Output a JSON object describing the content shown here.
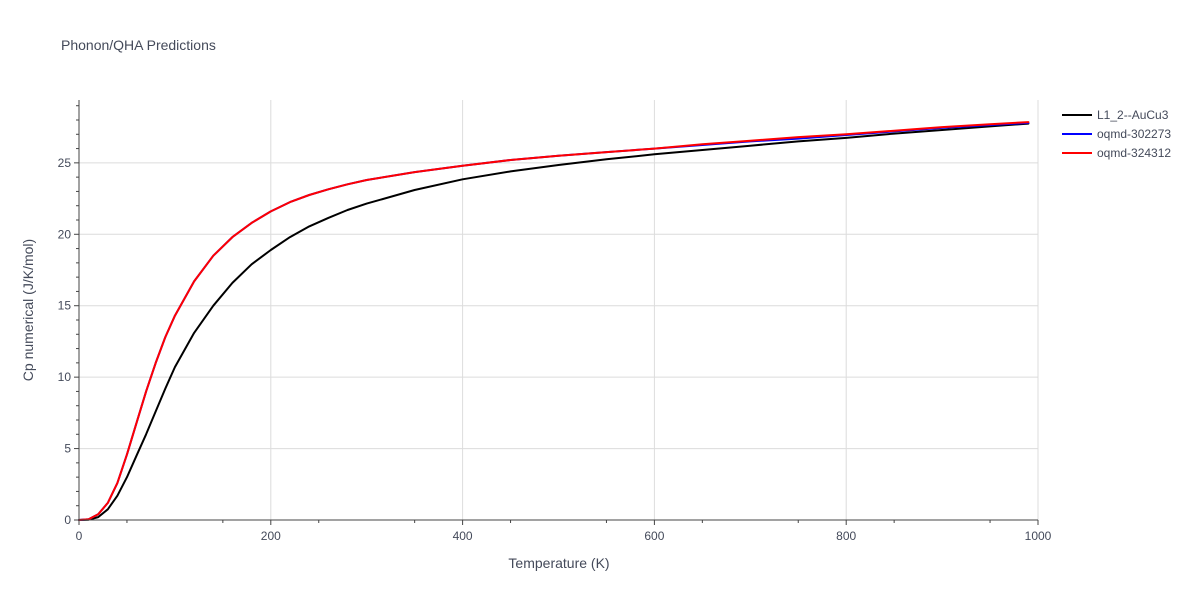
{
  "chart_data": {
    "type": "line",
    "title": "Phonon/QHA Predictions",
    "xlabel": "Temperature (K)",
    "ylabel": "Cp numerical (J/K/mol)",
    "xlim": [
      0,
      1000
    ],
    "ylim": [
      0,
      29.4
    ],
    "xticks": [
      0,
      200,
      400,
      600,
      800,
      1000
    ],
    "xtick_labels": [
      "0",
      "200",
      "400",
      "600",
      "800",
      "1000"
    ],
    "yticks": [
      0,
      5,
      10,
      15,
      20,
      25
    ],
    "ytick_labels": [
      "0",
      "5",
      "10",
      "15",
      "20",
      "25"
    ],
    "grid": true,
    "legend_position": "top-right",
    "x": [
      0,
      10,
      20,
      30,
      40,
      50,
      60,
      70,
      80,
      90,
      100,
      120,
      140,
      160,
      180,
      200,
      220,
      240,
      260,
      280,
      300,
      350,
      400,
      450,
      500,
      550,
      600,
      650,
      700,
      750,
      800,
      850,
      900,
      950,
      990
    ],
    "series": [
      {
        "name": "L1_2--AuCu3",
        "color": "#000000",
        "values": [
          0,
          0.02,
          0.2,
          0.75,
          1.7,
          3.0,
          4.5,
          6.0,
          7.6,
          9.2,
          10.7,
          13.1,
          15.0,
          16.6,
          17.9,
          18.9,
          19.8,
          20.55,
          21.15,
          21.7,
          22.15,
          23.1,
          23.85,
          24.4,
          24.85,
          25.25,
          25.6,
          25.9,
          26.2,
          26.5,
          26.75,
          27.05,
          27.3,
          27.55,
          27.75
        ]
      },
      {
        "name": "oqmd-302273",
        "color": "#0000ff",
        "values": [
          0,
          0.05,
          0.4,
          1.2,
          2.6,
          4.6,
          6.8,
          9.0,
          11.0,
          12.8,
          14.3,
          16.7,
          18.5,
          19.8,
          20.8,
          21.6,
          22.25,
          22.75,
          23.15,
          23.5,
          23.8,
          24.35,
          24.8,
          25.2,
          25.5,
          25.75,
          26.0,
          26.25,
          26.5,
          26.7,
          26.95,
          27.2,
          27.45,
          27.65,
          27.8
        ]
      },
      {
        "name": "oqmd-324312",
        "color": "#ff0000",
        "values": [
          0,
          0.05,
          0.4,
          1.2,
          2.6,
          4.6,
          6.8,
          9.0,
          11.0,
          12.8,
          14.3,
          16.7,
          18.5,
          19.8,
          20.8,
          21.6,
          22.25,
          22.75,
          23.15,
          23.5,
          23.8,
          24.35,
          24.8,
          25.2,
          25.5,
          25.75,
          26.0,
          26.3,
          26.55,
          26.8,
          27.0,
          27.25,
          27.5,
          27.7,
          27.85
        ]
      }
    ]
  }
}
